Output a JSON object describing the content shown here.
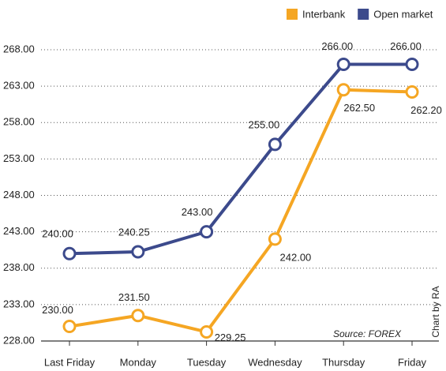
{
  "chart_data": {
    "type": "line",
    "categories": [
      "Last Friday",
      "Monday",
      "Tuesday",
      "Wednesday",
      "Thursday",
      "Friday"
    ],
    "series": [
      {
        "name": "Interbank",
        "color": "#f5a623",
        "values": [
          230.0,
          231.5,
          229.25,
          242.0,
          262.5,
          262.2
        ],
        "value_labels": [
          "230.00",
          "231.50",
          "229.25",
          "242.00",
          "262.50",
          "262.20"
        ]
      },
      {
        "name": "Open market",
        "color": "#3c4a8c",
        "values": [
          240.0,
          240.25,
          243.0,
          255.0,
          266.0,
          266.0
        ],
        "value_labels": [
          "240.00",
          "240.25",
          "243.00",
          "255.00",
          "266.00",
          "266.00"
        ]
      }
    ],
    "ylim": [
      228,
      268
    ],
    "yticks": [
      {
        "value": 228,
        "label": "228.00"
      },
      {
        "value": 233,
        "label": "233.00"
      },
      {
        "value": 238,
        "label": "238.00"
      },
      {
        "value": 243,
        "label": "243.00"
      },
      {
        "value": 248,
        "label": "248.00"
      },
      {
        "value": 253,
        "label": "253.00"
      },
      {
        "value": 258,
        "label": "258.00"
      },
      {
        "value": 263,
        "label": "263.00"
      },
      {
        "value": 268,
        "label": "268.00"
      }
    ],
    "grid": true,
    "legend": "top-right",
    "source": "Source: FOREX",
    "credit": "Chart by RA"
  }
}
